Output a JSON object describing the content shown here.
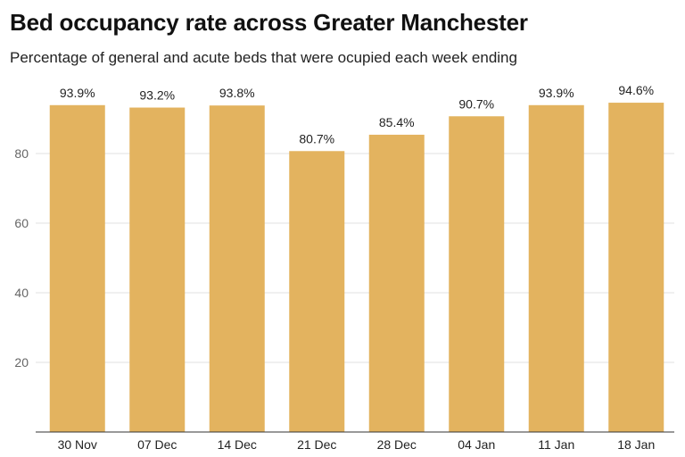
{
  "title": "Bed occupancy rate across Greater Manchester",
  "subtitle": "Percentage of general and acute beds that were ocupied each week ending",
  "colors": {
    "bar": "#e3b35f",
    "grid": "#e0e0e0",
    "axis": "#333333"
  },
  "chart_data": {
    "type": "bar",
    "title": "Bed occupancy rate across Greater Manchester",
    "subtitle": "Percentage of general and acute beds that were ocupied each week ending",
    "categories": [
      "30 Nov",
      "07 Dec",
      "14 Dec",
      "21 Dec",
      "28 Dec",
      "04 Jan",
      "11 Jan",
      "18 Jan"
    ],
    "values": [
      93.9,
      93.2,
      93.8,
      80.7,
      85.4,
      90.7,
      93.9,
      94.6
    ],
    "data_labels": [
      "93.9%",
      "93.2%",
      "93.8%",
      "80.7%",
      "85.4%",
      "90.7%",
      "93.9%",
      "94.6%"
    ],
    "yticks": [
      20,
      40,
      60,
      80
    ],
    "ylim": [
      0,
      100
    ],
    "grid": true,
    "legend": "none"
  }
}
